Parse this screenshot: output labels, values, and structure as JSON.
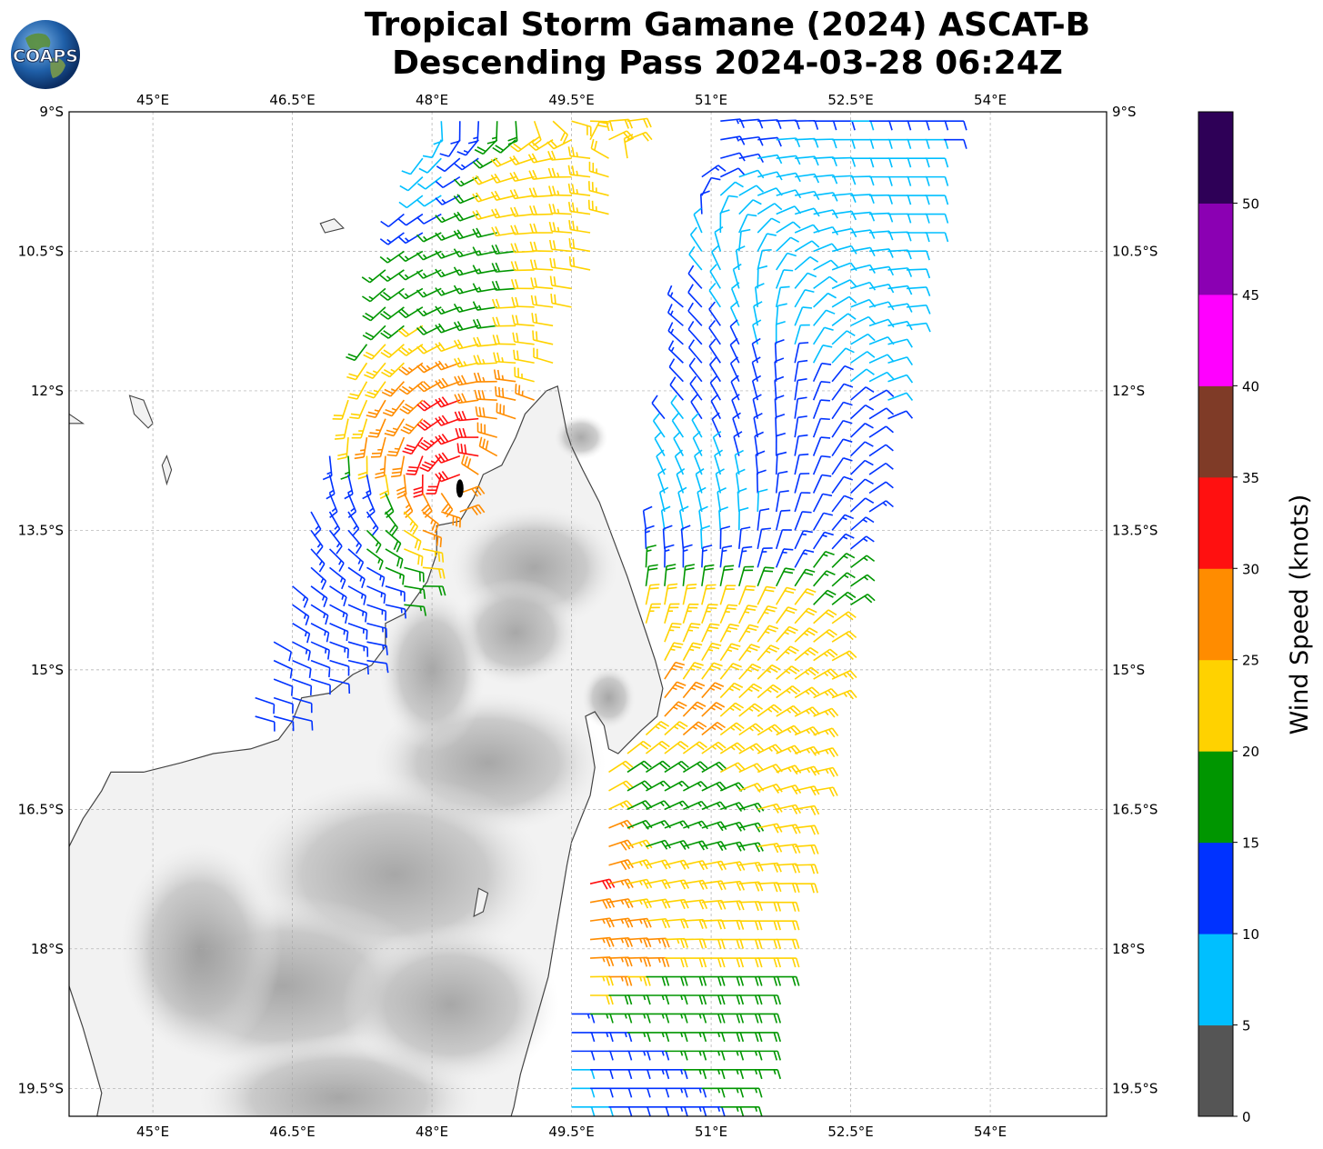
{
  "title": {
    "line1": "Tropical Storm Gamane (2024) ASCAT-B",
    "line2": "Descending Pass 2024-03-28 06:24Z"
  },
  "logo": {
    "text": "COAPS",
    "icon": "globe-logo-icon"
  },
  "map": {
    "lon_range": [
      44.1,
      55.25
    ],
    "lat_range": [
      -19.8,
      -9.0
    ],
    "lon_ticks": [
      {
        "value": 45.0,
        "label": "45°E"
      },
      {
        "value": 46.5,
        "label": "46.5°E"
      },
      {
        "value": 48.0,
        "label": "48°E"
      },
      {
        "value": 49.5,
        "label": "49.5°E"
      },
      {
        "value": 51.0,
        "label": "51°E"
      },
      {
        "value": 52.5,
        "label": "52.5°E"
      },
      {
        "value": 54.0,
        "label": "54°E"
      }
    ],
    "lat_ticks": [
      {
        "value": -9.0,
        "label": "9°S"
      },
      {
        "value": -10.5,
        "label": "10.5°S"
      },
      {
        "value": -12.0,
        "label": "12°S"
      },
      {
        "value": -13.5,
        "label": "13.5°S"
      },
      {
        "value": -15.0,
        "label": "15°S"
      },
      {
        "value": -16.5,
        "label": "16.5°S"
      },
      {
        "value": -18.0,
        "label": "18°S"
      },
      {
        "value": -19.5,
        "label": "19.5°S"
      }
    ],
    "grid": true,
    "land_color": "#f2f2f2",
    "terrain_color": "#b9b9b9",
    "coast_color": "#444444",
    "madagascar_coast": [
      [
        49.23,
        -12.0
      ],
      [
        49.35,
        -11.95
      ],
      [
        49.4,
        -12.2
      ],
      [
        49.45,
        -12.45
      ],
      [
        49.5,
        -12.6
      ],
      [
        49.62,
        -12.85
      ],
      [
        49.8,
        -13.2
      ],
      [
        49.95,
        -13.6
      ],
      [
        50.1,
        -14.0
      ],
      [
        50.2,
        -14.3
      ],
      [
        50.3,
        -14.6
      ],
      [
        50.4,
        -14.9
      ],
      [
        50.48,
        -15.2
      ],
      [
        50.42,
        -15.5
      ],
      [
        50.25,
        -15.65
      ],
      [
        50.1,
        -15.8
      ],
      [
        50.0,
        -15.9
      ],
      [
        49.9,
        -15.85
      ],
      [
        49.85,
        -15.6
      ],
      [
        49.75,
        -15.45
      ],
      [
        49.65,
        -15.5
      ],
      [
        49.7,
        -15.75
      ],
      [
        49.75,
        -16.05
      ],
      [
        49.7,
        -16.35
      ],
      [
        49.6,
        -16.6
      ],
      [
        49.5,
        -16.85
      ],
      [
        49.45,
        -17.1
      ],
      [
        49.4,
        -17.4
      ],
      [
        49.35,
        -17.7
      ],
      [
        49.3,
        -18.0
      ],
      [
        49.25,
        -18.3
      ],
      [
        49.15,
        -18.65
      ],
      [
        49.05,
        -19.0
      ],
      [
        48.95,
        -19.35
      ],
      [
        48.88,
        -19.7
      ],
      [
        48.85,
        -19.8
      ],
      [
        44.4,
        -19.8
      ],
      [
        44.45,
        -19.55
      ],
      [
        44.35,
        -19.2
      ],
      [
        44.25,
        -18.85
      ],
      [
        44.1,
        -18.4
      ],
      [
        44.05,
        -17.9
      ],
      [
        44.0,
        -17.4
      ],
      [
        44.05,
        -17.0
      ],
      [
        44.25,
        -16.6
      ],
      [
        44.45,
        -16.3
      ],
      [
        44.55,
        -16.1
      ],
      [
        44.9,
        -16.1
      ],
      [
        45.3,
        -16.0
      ],
      [
        45.65,
        -15.9
      ],
      [
        46.05,
        -15.85
      ],
      [
        46.35,
        -15.75
      ],
      [
        46.5,
        -15.55
      ],
      [
        46.6,
        -15.3
      ],
      [
        46.9,
        -15.25
      ],
      [
        47.15,
        -15.05
      ],
      [
        47.35,
        -14.95
      ],
      [
        47.5,
        -14.75
      ],
      [
        47.5,
        -14.5
      ],
      [
        47.7,
        -14.4
      ],
      [
        47.95,
        -14.05
      ],
      [
        48.05,
        -13.75
      ],
      [
        48.05,
        -13.45
      ],
      [
        48.3,
        -13.4
      ],
      [
        48.45,
        -13.15
      ],
      [
        48.55,
        -12.9
      ],
      [
        48.75,
        -12.8
      ],
      [
        48.9,
        -12.5
      ],
      [
        49.0,
        -12.25
      ],
      [
        49.23,
        -12.0
      ]
    ],
    "islands": [
      [
        [
          43.95,
          -12.2
        ],
        [
          44.1,
          -12.25
        ],
        [
          44.25,
          -12.35
        ],
        [
          44.05,
          -12.35
        ],
        [
          43.95,
          -12.2
        ]
      ],
      [
        [
          44.75,
          -12.05
        ],
        [
          44.9,
          -12.1
        ],
        [
          45.0,
          -12.35
        ],
        [
          44.95,
          -12.4
        ],
        [
          44.8,
          -12.25
        ],
        [
          44.75,
          -12.05
        ]
      ],
      [
        [
          45.15,
          -12.7
        ],
        [
          45.2,
          -12.85
        ],
        [
          45.15,
          -13.0
        ],
        [
          45.1,
          -12.8
        ],
        [
          45.15,
          -12.7
        ]
      ],
      [
        [
          46.8,
          -10.2
        ],
        [
          46.95,
          -10.15
        ],
        [
          47.05,
          -10.25
        ],
        [
          46.85,
          -10.3
        ],
        [
          46.8,
          -10.2
        ]
      ],
      [
        [
          48.5,
          -17.35
        ],
        [
          48.6,
          -17.4
        ],
        [
          48.55,
          -17.6
        ],
        [
          48.45,
          -17.65
        ],
        [
          48.5,
          -17.35
        ]
      ]
    ],
    "wind_direction_field": "cyclonic clockwise circulation around the storm center; barbs point toward direction from which wind blows",
    "storm_center_marker_color": "#000000"
  },
  "chart_data": {
    "type": "wind_barbs",
    "storm_center": {
      "lon": 48.3,
      "lat": -13.05
    },
    "swaths": [
      {
        "name": "west",
        "lon_min_at_top": 48.0,
        "lon_max_at_top": 50.3,
        "lon_min_at_bottom": 46.0,
        "lon_max_at_bottom": 48.0,
        "lat_min": -15.6,
        "lat_max": -9.0
      },
      {
        "name": "east",
        "lon_min_at_top": 51.0,
        "lon_max_at_top": 53.6,
        "lon_min_at_bottom": 49.3,
        "lon_max_at_bottom": 51.4,
        "lat_min": -19.8,
        "lat_max": -9.0
      }
    ],
    "wind_samples": [
      {
        "lon": 48.1,
        "lat": -12.55,
        "speed_kt": 33
      },
      {
        "lon": 48.45,
        "lat": -12.75,
        "speed_kt": 31
      },
      {
        "lon": 47.6,
        "lat": -12.4,
        "speed_kt": 27
      },
      {
        "lon": 48.7,
        "lat": -12.9,
        "speed_kt": 26
      },
      {
        "lon": 47.1,
        "lat": -12.1,
        "speed_kt": 22
      },
      {
        "lon": 49.2,
        "lat": -11.0,
        "speed_kt": 22
      },
      {
        "lon": 49.5,
        "lat": -10.0,
        "speed_kt": 23
      },
      {
        "lon": 49.05,
        "lat": -10.05,
        "speed_kt": 21
      },
      {
        "lon": 47.0,
        "lat": -11.0,
        "speed_kt": 17
      },
      {
        "lon": 48.6,
        "lat": -10.8,
        "speed_kt": 16
      },
      {
        "lon": 47.0,
        "lat": -13.0,
        "speed_kt": 13
      },
      {
        "lon": 46.8,
        "lat": -14.3,
        "speed_kt": 13
      },
      {
        "lon": 46.7,
        "lat": -15.3,
        "speed_kt": 11
      },
      {
        "lon": 47.8,
        "lat": -9.6,
        "speed_kt": 9
      },
      {
        "lon": 51.6,
        "lat": -10.5,
        "speed_kt": 8
      },
      {
        "lon": 52.4,
        "lat": -11.0,
        "speed_kt": 8
      },
      {
        "lon": 50.9,
        "lat": -13.0,
        "speed_kt": 8
      },
      {
        "lon": 51.6,
        "lat": -12.5,
        "speed_kt": 12
      },
      {
        "lon": 51.0,
        "lat": -15.2,
        "speed_kt": 22
      },
      {
        "lon": 50.9,
        "lat": -15.3,
        "speed_kt": 27
      },
      {
        "lon": 50.5,
        "lat": -16.5,
        "speed_kt": 17
      },
      {
        "lon": 49.5,
        "lat": -17.0,
        "speed_kt": 31
      },
      {
        "lon": 50.4,
        "lat": -17.5,
        "speed_kt": 22
      },
      {
        "lon": 50.0,
        "lat": -18.0,
        "speed_kt": 27
      },
      {
        "lon": 50.3,
        "lat": -18.6,
        "speed_kt": 17
      },
      {
        "lon": 49.8,
        "lat": -19.3,
        "speed_kt": 12
      },
      {
        "lon": 49.4,
        "lat": -19.5,
        "speed_kt": 8
      }
    ]
  },
  "colorbar": {
    "label": "Wind Speed (knots)",
    "bounds": [
      0,
      5,
      10,
      15,
      20,
      25,
      30,
      35,
      40,
      45,
      50,
      55
    ],
    "tick_labels": [
      "0",
      "5",
      "10",
      "15",
      "20",
      "25",
      "30",
      "35",
      "40",
      "45",
      "50"
    ],
    "colors": [
      "#555555",
      "#00bfff",
      "#0032ff",
      "#009600",
      "#ffd200",
      "#ff8c00",
      "#ff1010",
      "#7f3b27",
      "#ff00ff",
      "#8b00b3",
      "#2e0057"
    ]
  }
}
